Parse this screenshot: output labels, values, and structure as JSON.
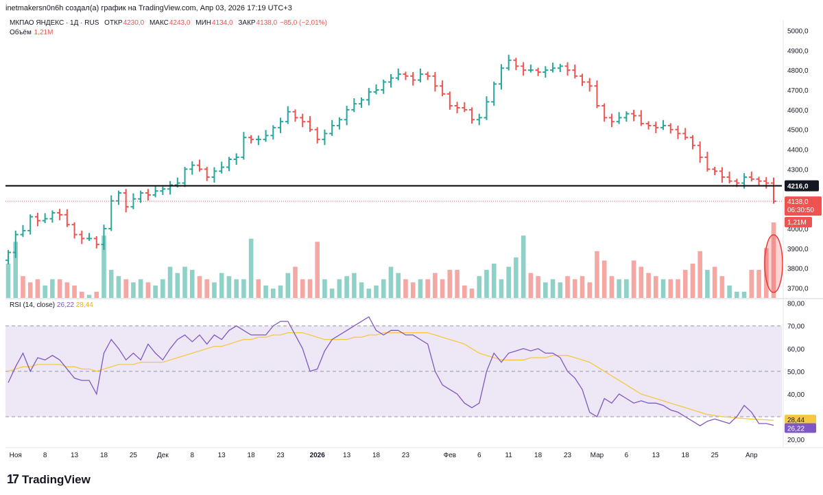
{
  "header": {
    "attribution": "inetmakersn0n6h создал(а) график на TradingView.com, Апр 03, 2026 17:19 UTC+3"
  },
  "legend": {
    "symbol": "МКПАО ЯНДЕКС · 1Д · RUS",
    "open_label": "ОТКР",
    "open": "4230,0",
    "high_label": "МАКС",
    "high": "4243,0",
    "low_label": "МИН",
    "low": "4134,0",
    "close_label": "ЗАКР",
    "close": "4138,0",
    "change": "−85,0 (−2,01%)",
    "volume_label": "Объём",
    "volume": "1,21M"
  },
  "rsi_legend": {
    "label": "RSI (14, close)",
    "rsi": "26,22",
    "ma": "28,44"
  },
  "footer": {
    "brand": "TradingView",
    "logo_mark": "17"
  },
  "colors": {
    "up": "#26a69a",
    "down": "#ef5350",
    "up_vol": "#8fd1c7",
    "down_vol": "#f4a7a3",
    "rsi": "#7e57c2",
    "rsi_ma": "#f5c844",
    "band": "#ede7f6"
  },
  "chart_data": [
    {
      "type": "candlestick",
      "title": "МКПАО ЯНДЕКС · 1Д · RUS",
      "ylim": [
        3650,
        5050
      ],
      "y_ticks": [
        3700,
        3800,
        3900,
        4000,
        4100,
        4200,
        4300,
        4400,
        4500,
        4600,
        4700,
        4800,
        4900,
        5000
      ],
      "y_tick_labels": [
        "3700,0",
        "3800,0",
        "3900,0",
        "4000,0",
        "",
        "",
        "4300,0",
        "4400,0",
        "4500,0",
        "4600,0",
        "4700,0",
        "4800,0",
        "4900,0",
        "5000,0"
      ],
      "x_tick_labels": [
        {
          "i": 1,
          "label": "Ноя"
        },
        {
          "i": 5,
          "label": "8"
        },
        {
          "i": 9,
          "label": "13"
        },
        {
          "i": 13,
          "label": "18"
        },
        {
          "i": 17,
          "label": "25"
        },
        {
          "i": 21,
          "label": "Дек"
        },
        {
          "i": 25,
          "label": "8"
        },
        {
          "i": 29,
          "label": "13"
        },
        {
          "i": 33,
          "label": "18"
        },
        {
          "i": 37,
          "label": "23"
        },
        {
          "i": 42,
          "label": "2026",
          "bold": true
        },
        {
          "i": 46,
          "label": "13"
        },
        {
          "i": 50,
          "label": "18"
        },
        {
          "i": 54,
          "label": "23"
        },
        {
          "i": 60,
          "label": "Фев"
        },
        {
          "i": 64,
          "label": "6"
        },
        {
          "i": 68,
          "label": "11"
        },
        {
          "i": 72,
          "label": "18"
        },
        {
          "i": 76,
          "label": "23"
        },
        {
          "i": 80,
          "label": "Мар"
        },
        {
          "i": 84,
          "label": "6"
        },
        {
          "i": 88,
          "label": "13"
        },
        {
          "i": 92,
          "label": "18"
        },
        {
          "i": 96,
          "label": "25"
        },
        {
          "i": 101,
          "label": "Апр"
        }
      ],
      "horizontal_line": {
        "value": 4216.0,
        "label": "4216,0"
      },
      "last_price": {
        "value": 4138.0,
        "label": "4138,0",
        "countdown": "06:30:50"
      },
      "volume_last_label": "1,21M",
      "close": [
        3880,
        3970,
        3990,
        4060,
        4040,
        4050,
        4080,
        4070,
        4020,
        3970,
        3950,
        3950,
        3920,
        4000,
        4140,
        4180,
        4110,
        4150,
        4180,
        4170,
        4190,
        4200,
        4220,
        4230,
        4300,
        4320,
        4300,
        4260,
        4290,
        4310,
        4350,
        4360,
        4460,
        4450,
        4450,
        4470,
        4510,
        4540,
        4590,
        4560,
        4540,
        4500,
        4450,
        4480,
        4520,
        4550,
        4600,
        4630,
        4650,
        4690,
        4700,
        4740,
        4760,
        4780,
        4770,
        4750,
        4780,
        4770,
        4720,
        4680,
        4620,
        4610,
        4600,
        4550,
        4560,
        4640,
        4730,
        4810,
        4850,
        4820,
        4800,
        4800,
        4790,
        4800,
        4810,
        4820,
        4800,
        4770,
        4740,
        4720,
        4620,
        4560,
        4540,
        4560,
        4580,
        4570,
        4530,
        4520,
        4510,
        4520,
        4500,
        4480,
        4460,
        4420,
        4360,
        4300,
        4290,
        4260,
        4240,
        4230,
        4260,
        4250,
        4240,
        4230,
        4138
      ],
      "volume_M": [
        0.55,
        0.9,
        0.35,
        0.25,
        0.3,
        0.2,
        0.3,
        0.3,
        0.25,
        0.2,
        0.1,
        0.05,
        0.1,
        1.0,
        0.45,
        0.35,
        0.3,
        0.25,
        0.3,
        0.25,
        0.2,
        0.3,
        0.5,
        0.4,
        0.5,
        0.45,
        0.35,
        0.3,
        0.25,
        0.4,
        0.35,
        0.3,
        0.3,
        0.95,
        0.3,
        0.2,
        0.15,
        0.2,
        0.4,
        0.5,
        0.3,
        0.3,
        0.9,
        0.3,
        0.15,
        0.3,
        0.35,
        0.4,
        0.25,
        0.15,
        0.2,
        0.3,
        0.5,
        0.4,
        0.3,
        0.25,
        0.3,
        0.3,
        0.4,
        0.3,
        0.45,
        0.45,
        0.2,
        0.15,
        0.35,
        0.45,
        0.55,
        0.3,
        0.5,
        0.65,
        1.0,
        0.4,
        0.35,
        0.25,
        0.3,
        0.25,
        0.35,
        0.3,
        0.35,
        0.25,
        0.75,
        0.6,
        0.35,
        0.3,
        0.3,
        0.6,
        0.5,
        0.4,
        0.35,
        0.3,
        0.3,
        0.3,
        0.45,
        0.55,
        0.75,
        0.45,
        0.5,
        0.35,
        0.2,
        0.1,
        0.1,
        0.45,
        0.45,
        0.8,
        1.21
      ],
      "volume_up": [
        true,
        true,
        false,
        false,
        false,
        true,
        true,
        false,
        false,
        false,
        false,
        true,
        false,
        true,
        true,
        true,
        false,
        true,
        true,
        false,
        true,
        true,
        true,
        true,
        true,
        true,
        false,
        false,
        true,
        true,
        true,
        true,
        true,
        true,
        false,
        true,
        true,
        true,
        true,
        false,
        false,
        false,
        false,
        true,
        true,
        true,
        true,
        true,
        true,
        true,
        true,
        true,
        true,
        true,
        false,
        false,
        true,
        false,
        false,
        false,
        false,
        false,
        false,
        false,
        true,
        true,
        true,
        true,
        true,
        true,
        true,
        false,
        false,
        true,
        true,
        true,
        false,
        false,
        false,
        false,
        false,
        false,
        false,
        true,
        true,
        false,
        false,
        false,
        false,
        true,
        false,
        false,
        false,
        false,
        false,
        true,
        false,
        false,
        true,
        true,
        true,
        false,
        false,
        false,
        false
      ],
      "rsi": [
        45,
        52,
        58,
        50,
        56,
        55,
        57,
        55,
        51,
        47,
        46,
        46,
        40,
        58,
        64,
        60,
        55,
        58,
        55,
        62,
        58,
        55,
        60,
        64,
        66,
        63,
        66,
        62,
        66,
        64,
        68,
        70,
        68,
        66,
        66,
        66,
        70,
        72,
        72,
        66,
        60,
        50,
        51,
        59,
        64,
        66,
        68,
        70,
        72,
        74,
        68,
        66,
        68,
        68,
        66,
        66,
        64,
        62,
        50,
        44,
        42,
        40,
        36,
        34,
        36,
        50,
        58,
        54,
        58,
        59,
        60,
        59,
        60,
        58,
        58,
        56,
        50,
        47,
        42,
        32,
        30,
        38,
        36,
        40,
        38,
        36,
        37,
        36,
        36,
        35,
        33,
        32,
        30,
        28,
        26,
        28,
        29,
        28,
        27,
        30,
        35,
        32,
        27,
        27,
        26.22
      ],
      "rsi_ma": [
        50,
        51,
        52,
        52,
        53,
        53,
        53,
        53,
        52,
        52,
        51,
        51,
        50,
        51,
        52,
        53,
        53,
        53,
        54,
        54,
        54,
        54,
        55,
        56,
        57,
        58,
        59,
        60,
        61,
        61,
        62,
        63,
        64,
        64,
        65,
        65,
        66,
        66,
        67,
        67,
        67,
        66,
        65,
        64,
        64,
        64,
        64,
        65,
        65,
        66,
        66,
        67,
        67,
        67,
        67,
        67,
        67,
        67,
        66,
        65,
        64,
        63,
        62,
        60,
        58,
        57,
        56,
        55,
        55,
        55,
        55,
        56,
        56,
        56,
        57,
        57,
        57,
        56,
        55,
        54,
        52,
        50,
        48,
        46,
        44,
        42,
        40,
        39,
        38,
        37,
        36,
        35,
        34,
        33,
        32,
        31,
        30.5,
        30,
        29.8,
        29.5,
        29.2,
        29,
        28.8,
        28.6,
        28.44
      ],
      "rsi_levels": [
        70,
        50,
        30
      ],
      "rsi_ylim": [
        17,
        82
      ],
      "rsi_y_ticks": [
        20,
        30,
        40,
        50,
        60,
        70,
        80
      ],
      "rsi_y_tick_labels": [
        "20,00",
        "",
        "40,00",
        "50,00",
        "60,00",
        "70,00",
        "80,00"
      ],
      "rsi_last_label": "26,22",
      "rsi_ma_last_label": "28,44"
    }
  ]
}
